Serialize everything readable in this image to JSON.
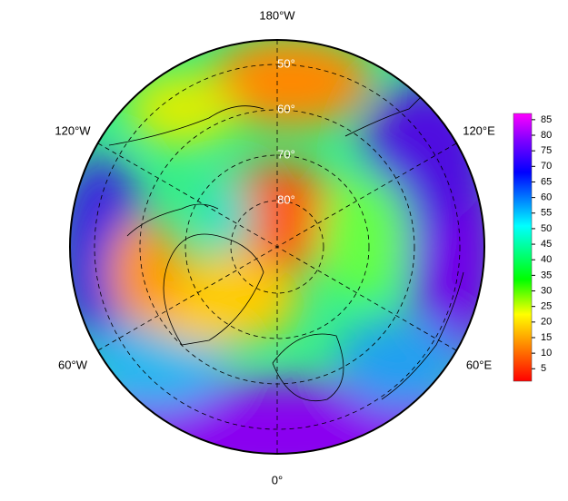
{
  "map": {
    "longitude_labels": {
      "top": "180°W",
      "upper_left": "120°W",
      "upper_right": "120°E",
      "lower_left": "60°W",
      "lower_right": "60°E",
      "bottom": "0°"
    },
    "latitude_labels": [
      "50°",
      "60°",
      "70°",
      "80°"
    ],
    "colorbar": {
      "lim": [
        1,
        87
      ],
      "ticks": [
        5,
        10,
        15,
        20,
        25,
        30,
        35,
        40,
        45,
        50,
        55,
        60,
        65,
        70,
        75,
        80,
        85
      ]
    }
  }
}
